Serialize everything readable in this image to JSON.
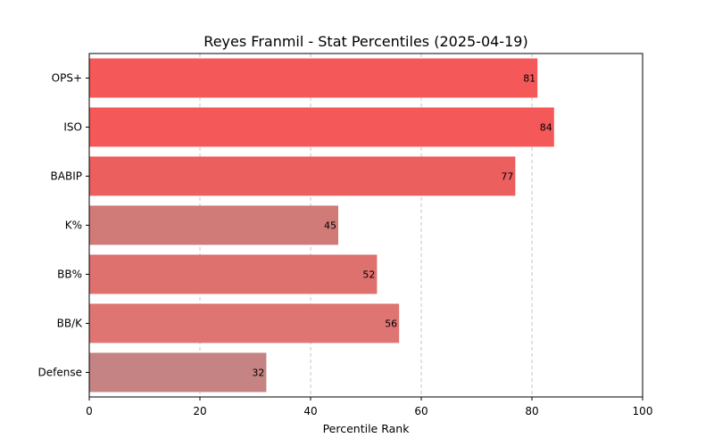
{
  "chart_data": {
    "type": "bar",
    "orientation": "horizontal",
    "title": "Reyes Franmil - Stat Percentiles (2025-04-19)",
    "xlabel": "Percentile Rank",
    "ylabel": "",
    "xlim": [
      0,
      100
    ],
    "xticks": [
      "0",
      "20",
      "40",
      "60",
      "80",
      "100"
    ],
    "grid": "vertical-dashed",
    "categories": [
      "OPS+",
      "ISO",
      "BABIP",
      "K%",
      "BB%",
      "BB/K",
      "Defense"
    ],
    "values": [
      81,
      84,
      77,
      45,
      52,
      56,
      32
    ],
    "colors": [
      "#f45858",
      "#f45858",
      "#ec5f5f",
      "#d07b78",
      "#de706e",
      "#de7573",
      "#c68383"
    ]
  }
}
